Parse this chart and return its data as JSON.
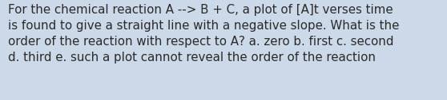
{
  "text": "For the chemical reaction A --> B + C, a plot of [A]t verses time\nis found to give a straight line with a negative slope. What is the\norder of the reaction with respect to A? a. zero b. first c. second\nd. third e. such a plot cannot reveal the order of the reaction",
  "background_color": "#ccd9e8",
  "text_color": "#2a2a2a",
  "font_size": 10.8,
  "fig_width": 5.58,
  "fig_height": 1.26,
  "dpi": 100
}
